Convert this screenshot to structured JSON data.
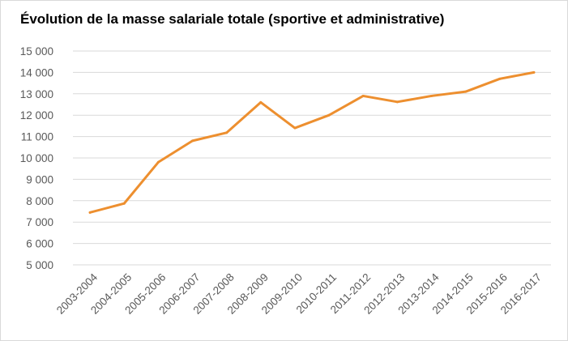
{
  "chart_data": {
    "type": "line",
    "title": "Évolution de la masse salariale totale (sportive et administrative)",
    "xlabel": "",
    "ylabel": "",
    "categories": [
      "2003-2004",
      "2004-2005",
      "2005-2006",
      "2006-2007",
      "2007-2008",
      "2008-2009",
      "2009-2010",
      "2010-2011",
      "2011-2012",
      "2012-2013",
      "2013-2014",
      "2014-2015",
      "2015-2016",
      "2016-2017"
    ],
    "series": [
      {
        "name": "Masse salariale totale",
        "color": "#ed8f2f",
        "values": [
          7450,
          7870,
          9800,
          10800,
          11180,
          12600,
          11400,
          12000,
          12900,
          12620,
          12900,
          13100,
          13700,
          14000
        ]
      }
    ],
    "ylim": [
      5000,
      15000
    ],
    "ytick_values": [
      5000,
      6000,
      7000,
      8000,
      9000,
      10000,
      11000,
      12000,
      13000,
      14000,
      15000
    ],
    "ytick_labels": [
      "5 000",
      "6 000",
      "7 000",
      "8 000",
      "9 000",
      "10 000",
      "11 000",
      "12 000",
      "13 000",
      "14 000",
      "15 000"
    ],
    "grid": true,
    "legend": "none"
  }
}
